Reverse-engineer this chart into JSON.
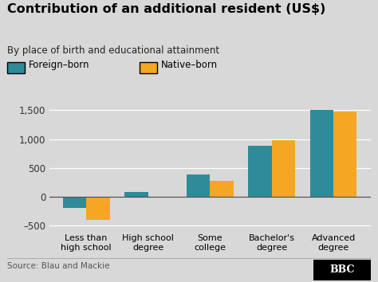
{
  "title": "Contribution of an additional resident (US$)",
  "subtitle": "By place of birth and educational attainment",
  "categories": [
    "Less than\nhigh school",
    "High school\ndegree",
    "Some\ncollege",
    "Bachelor's\ndegree",
    "Advanced\ndegree"
  ],
  "foreign_born": [
    -200,
    80,
    380,
    880,
    1500
  ],
  "native_born": [
    -400,
    5,
    280,
    980,
    1480
  ],
  "foreign_color": "#2e8b9a",
  "native_color": "#f5a623",
  "bg_color": "#d8d8d8",
  "plot_bg_color": "#d8d8d8",
  "ylim": [
    -600,
    1700
  ],
  "yticks": [
    -500,
    0,
    500,
    1000,
    1500
  ],
  "source_text": "Source: Blau and Mackie",
  "bbc_text": "BBC",
  "legend_foreign": "Foreign–born",
  "legend_native": "Native–born",
  "bar_width": 0.38
}
